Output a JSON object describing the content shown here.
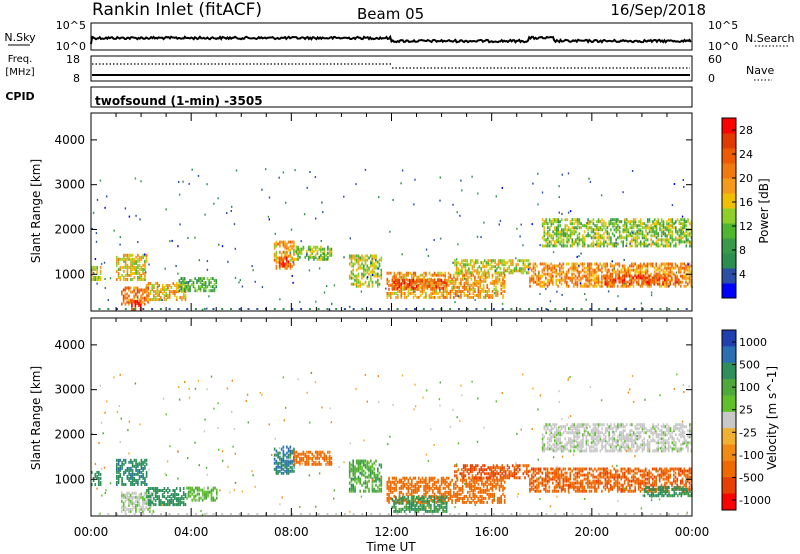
{
  "header": {
    "station": "Rankin Inlet (fitACF)",
    "beam": "Beam 05",
    "date": "16/Sep/2018"
  },
  "nsky_panel": {
    "left_label": "N.Sky",
    "left_tick_top": "10^5",
    "left_tick_bottom": "10^0",
    "right_tick_top": "10^5",
    "right_tick_bottom": "10^0",
    "right_label": "N.Search"
  },
  "freq_panel": {
    "left_label_1": "Freq.",
    "left_label_2": "[MHz]",
    "left_tick_top": "18",
    "left_tick_bottom": "8",
    "right_tick_top": "60",
    "right_tick_bottom": "0",
    "right_label": "Nave"
  },
  "cpid_panel": {
    "label": "CPID",
    "program": "twofsound (1-min) -3505"
  },
  "chart_data": [
    {
      "type": "heatmap",
      "name": "power",
      "ylabel": "Slant Range [km]",
      "xlabel": "Time UT",
      "xlim_hours": [
        0,
        24
      ],
      "ylim_km": [
        180,
        4600
      ],
      "yticks": [
        "1000",
        "2000",
        "3000",
        "4000"
      ],
      "xticks": [
        "00:00",
        "04:00",
        "08:00",
        "12:00",
        "16:00",
        "20:00",
        "00:00"
      ],
      "colorbar": {
        "label": "Power [dB]",
        "ticks": [
          "4",
          "8",
          "12",
          "16",
          "20",
          "24",
          "28"
        ],
        "range": [
          0,
          30
        ],
        "colors": [
          "#0000ff",
          "#2a4fa5",
          "#2d8f4f",
          "#3a9a4a",
          "#4fb62f",
          "#8fcf2a",
          "#f0c000",
          "#f59a1a",
          "#f07a10",
          "#ee5a00",
          "#e03a00",
          "#ff0000"
        ]
      },
      "regions": [
        {
          "t0": 0.0,
          "t1": 0.4,
          "r0": 850,
          "r1": 1150,
          "p": 14
        },
        {
          "t0": 1.0,
          "t1": 2.2,
          "r0": 850,
          "r1": 1400,
          "p": 16
        },
        {
          "t0": 1.2,
          "t1": 2.3,
          "r0": 300,
          "r1": 700,
          "p": 22
        },
        {
          "t0": 1.6,
          "t1": 2.0,
          "r0": 180,
          "r1": 380,
          "p": 28
        },
        {
          "t0": 2.2,
          "t1": 3.8,
          "r0": 400,
          "r1": 800,
          "p": 18
        },
        {
          "t0": 3.5,
          "t1": 5.0,
          "r0": 600,
          "r1": 900,
          "p": 10
        },
        {
          "t0": 7.3,
          "t1": 8.1,
          "r0": 1100,
          "r1": 1700,
          "p": 19
        },
        {
          "t0": 7.5,
          "t1": 7.9,
          "r0": 1150,
          "r1": 1350,
          "p": 26
        },
        {
          "t0": 8.1,
          "t1": 9.6,
          "r0": 1300,
          "r1": 1600,
          "p": 12
        },
        {
          "t0": 10.3,
          "t1": 11.6,
          "r0": 700,
          "r1": 1400,
          "p": 14
        },
        {
          "t0": 11.8,
          "t1": 16.5,
          "r0": 450,
          "r1": 1000,
          "p": 19
        },
        {
          "t0": 12.0,
          "t1": 14.2,
          "r0": 650,
          "r1": 850,
          "p": 24
        },
        {
          "t0": 14.5,
          "t1": 17.5,
          "r0": 1000,
          "r1": 1300,
          "p": 15
        },
        {
          "t0": 17.5,
          "t1": 24.0,
          "r0": 700,
          "r1": 1200,
          "p": 20
        },
        {
          "t0": 20.5,
          "t1": 23.5,
          "r0": 750,
          "r1": 950,
          "p": 25
        },
        {
          "t0": 18.0,
          "t1": 24.0,
          "r0": 1600,
          "r1": 2200,
          "p": 13
        }
      ]
    },
    {
      "type": "heatmap",
      "name": "velocity",
      "ylabel": "Slant Range [km]",
      "xlabel": "Time UT",
      "xlim_hours": [
        0,
        24
      ],
      "ylim_km": [
        180,
        4600
      ],
      "yticks": [
        "1000",
        "2000",
        "3000",
        "4000"
      ],
      "xticks": [
        "00:00",
        "04:00",
        "08:00",
        "12:00",
        "16:00",
        "20:00",
        "00:00"
      ],
      "colorbar": {
        "label": "Velocity [m s^-1]",
        "ticks": [
          "1000",
          "500",
          "100",
          "25",
          "-25",
          "-100",
          "-500",
          "-1000"
        ],
        "colors": [
          "#2040b0",
          "#2a6fb0",
          "#2e8f5a",
          "#4fa83a",
          "#5fc02a",
          "#c8c8c8",
          "#f0b030",
          "#f08a10",
          "#ee6a00",
          "#e84000",
          "#ff0000"
        ]
      },
      "regions": [
        {
          "t0": 0.0,
          "t1": 0.4,
          "r0": 850,
          "r1": 1150,
          "v": 300
        },
        {
          "t0": 1.0,
          "t1": 2.2,
          "r0": 850,
          "r1": 1400,
          "v": 400
        },
        {
          "t0": 1.2,
          "t1": 2.5,
          "r0": 250,
          "r1": 700,
          "v": 10
        },
        {
          "t0": 2.2,
          "t1": 3.8,
          "r0": 400,
          "r1": 800,
          "v": 200
        },
        {
          "t0": 3.8,
          "t1": 5.0,
          "r0": 500,
          "r1": 800,
          "v": 50
        },
        {
          "t0": 7.3,
          "t1": 8.1,
          "r0": 1100,
          "r1": 1700,
          "v": 500
        },
        {
          "t0": 8.1,
          "t1": 9.6,
          "r0": 1300,
          "r1": 1600,
          "v": -150
        },
        {
          "t0": 10.3,
          "t1": 11.6,
          "r0": 700,
          "r1": 1400,
          "v": 80
        },
        {
          "t0": 11.8,
          "t1": 16.5,
          "r0": 450,
          "r1": 1000,
          "v": -200
        },
        {
          "t0": 12.0,
          "t1": 14.2,
          "r0": 250,
          "r1": 600,
          "v": 120
        },
        {
          "t0": 14.5,
          "t1": 17.5,
          "r0": 1000,
          "r1": 1300,
          "v": -300
        },
        {
          "t0": 17.5,
          "t1": 24.0,
          "r0": 700,
          "r1": 1200,
          "v": -250
        },
        {
          "t0": 18.0,
          "t1": 24.0,
          "r0": 1600,
          "r1": 2200,
          "v": 5
        },
        {
          "t0": 22.0,
          "t1": 24.0,
          "r0": 600,
          "r1": 800,
          "v": 150
        }
      ]
    }
  ]
}
